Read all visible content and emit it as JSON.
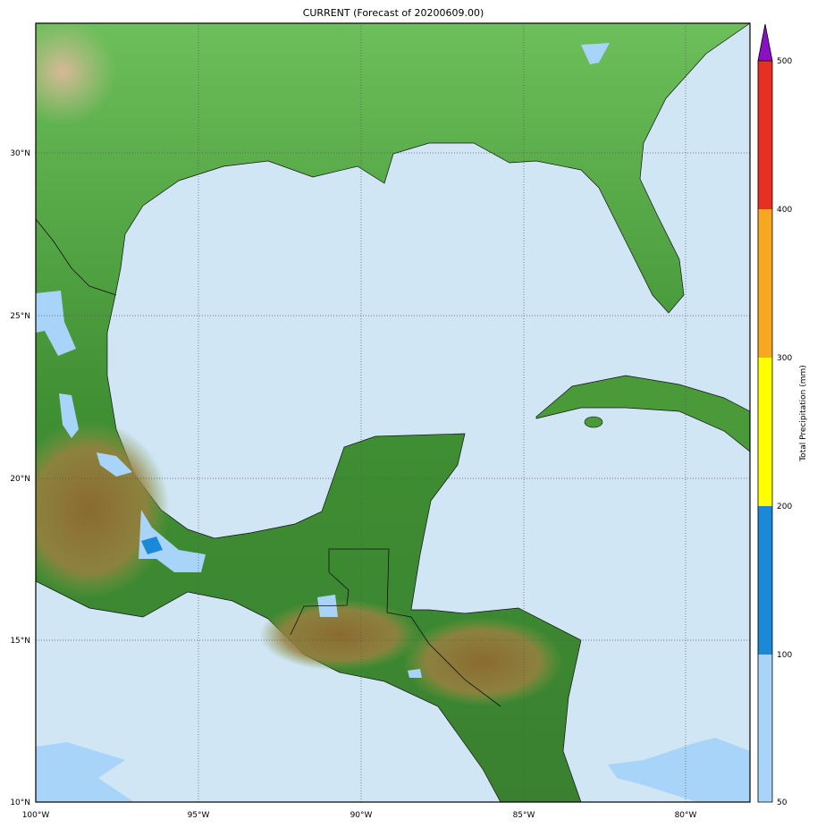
{
  "title": "CURRENT (Forecast of 20200609.00)",
  "map": {
    "extent": {
      "lon": [
        -100,
        -78
      ],
      "lat": [
        10,
        34
      ]
    },
    "lon_ticks": [
      "100°W",
      "95°W",
      "90°W",
      "85°W",
      "80°W"
    ],
    "lat_ticks": [
      "10°N",
      "15°N",
      "20°N",
      "25°N",
      "30°N"
    ],
    "gridlines": true,
    "colors": {
      "ocean": "#d0e6f5",
      "land": "#3f8f33"
    }
  },
  "colorbar": {
    "label": "Total Precipitation (mm)",
    "ticks": [
      "50",
      "100",
      "200",
      "300",
      "400",
      "500"
    ],
    "colors": [
      "#a8d4fa",
      "#1a8ad8",
      "#ffff00",
      "#f8a820",
      "#e83020",
      "#8a10c8"
    ],
    "extend": "max"
  }
}
